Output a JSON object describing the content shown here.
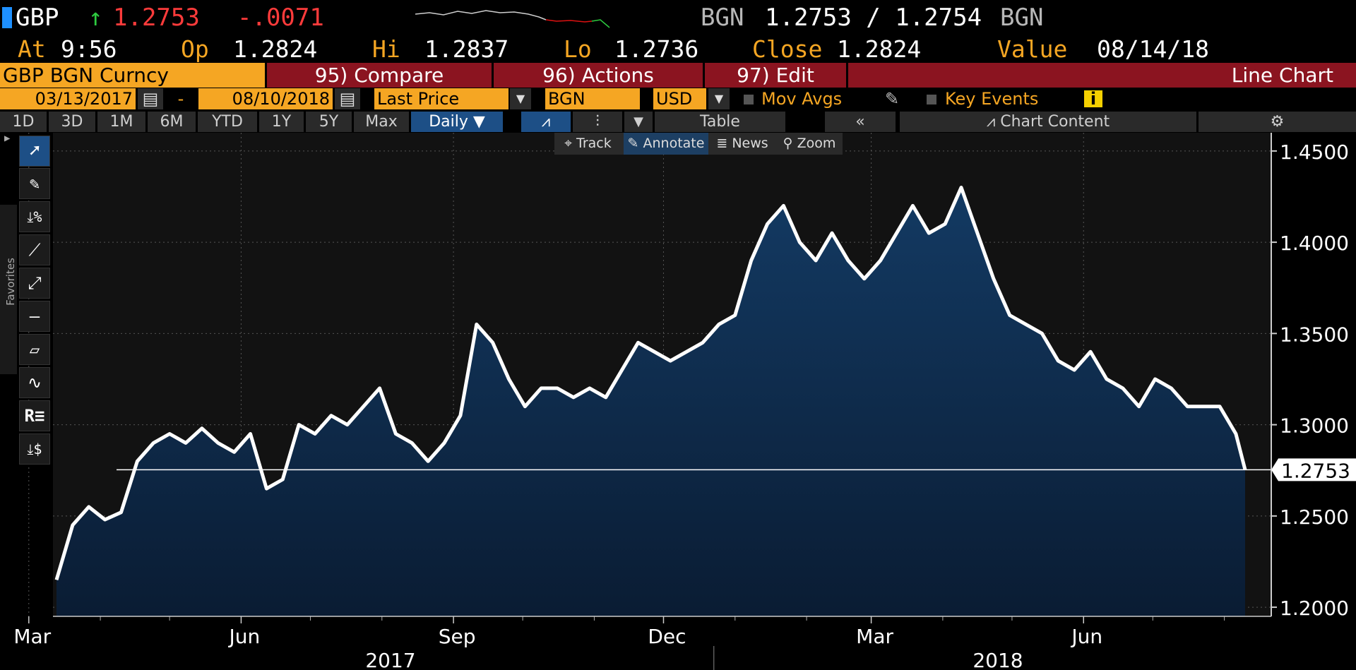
{
  "header": {
    "ticker": "GBP",
    "arrow": "↑",
    "last": "1.2753",
    "change": "-.0071",
    "source_left": "BGN",
    "bid_ask": "1.2753 / 1.2754",
    "source_right": "BGN"
  },
  "quote": {
    "at_label": "At",
    "at_value": "9:56",
    "op_label": "Op",
    "op_value": "1.2824",
    "hi_label": "Hi",
    "hi_value": "1.2837",
    "lo_label": "Lo",
    "lo_value": "1.2736",
    "close_label": "Close",
    "close_value": "1.2824",
    "value_label": "Value",
    "value_date": "08/14/18"
  },
  "menubar": {
    "security": "GBP BGN Curncy",
    "compare": "95) Compare",
    "actions": "96) Actions",
    "edit": "97) Edit",
    "chart_type": "Line Chart"
  },
  "settings": {
    "start_date": "03/13/2017",
    "dash": "-",
    "end_date": "08/10/2018",
    "field": "Last Price",
    "source": "BGN",
    "currency": "USD",
    "mov_avgs": "Mov Avgs",
    "key_events": "Key Events"
  },
  "periods": [
    "1D",
    "3D",
    "1M",
    "6M",
    "YTD",
    "1Y",
    "5Y",
    "Max"
  ],
  "frequency": "Daily ▼",
  "view_buttons": {
    "table": "Table",
    "collapse": "«",
    "chart_content": "Chart Content"
  },
  "chart_tools": {
    "track": "Track",
    "annotate": "Annotate",
    "news": "News",
    "zoom": "Zoom"
  },
  "sidebar": {
    "favorites": "Favorites"
  },
  "colors": {
    "line": "#ffffff",
    "area": "#0f2a4a",
    "amber": "#f5a623",
    "red": "#ff3b3b",
    "menubar": "#8b1420",
    "blue_btn": "#1d4f86"
  },
  "chart_data": {
    "type": "area",
    "x_ticks": [
      "Mar",
      "Jun",
      "Sep",
      "Dec",
      "Mar",
      "Jun"
    ],
    "x_years": [
      "2017",
      "2018"
    ],
    "y_ticks": [
      "1.4500",
      "1.4000",
      "1.3500",
      "1.3000",
      "1.2500",
      "1.2000"
    ],
    "ylim": [
      1.195,
      1.46
    ],
    "last_value": "1.2753",
    "dates": [
      "2017-03-13",
      "2017-03-20",
      "2017-03-27",
      "2017-04-03",
      "2017-04-10",
      "2017-04-17",
      "2017-04-24",
      "2017-05-01",
      "2017-05-08",
      "2017-05-15",
      "2017-05-22",
      "2017-05-29",
      "2017-06-05",
      "2017-06-12",
      "2017-06-19",
      "2017-06-26",
      "2017-07-03",
      "2017-07-10",
      "2017-07-17",
      "2017-07-24",
      "2017-07-31",
      "2017-08-07",
      "2017-08-14",
      "2017-08-21",
      "2017-08-28",
      "2017-09-04",
      "2017-09-11",
      "2017-09-18",
      "2017-09-25",
      "2017-10-02",
      "2017-10-09",
      "2017-10-16",
      "2017-10-23",
      "2017-10-30",
      "2017-11-06",
      "2017-11-13",
      "2017-11-20",
      "2017-11-27",
      "2017-12-04",
      "2017-12-11",
      "2017-12-18",
      "2017-12-25",
      "2018-01-01",
      "2018-01-08",
      "2018-01-15",
      "2018-01-22",
      "2018-01-29",
      "2018-02-05",
      "2018-02-12",
      "2018-02-19",
      "2018-02-26",
      "2018-03-05",
      "2018-03-12",
      "2018-03-19",
      "2018-03-26",
      "2018-04-02",
      "2018-04-09",
      "2018-04-16",
      "2018-04-23",
      "2018-04-30",
      "2018-05-07",
      "2018-05-14",
      "2018-05-21",
      "2018-05-28",
      "2018-06-04",
      "2018-06-11",
      "2018-06-18",
      "2018-06-25",
      "2018-07-02",
      "2018-07-09",
      "2018-07-16",
      "2018-07-23",
      "2018-07-30",
      "2018-08-06",
      "2018-08-10"
    ],
    "values": [
      1.215,
      1.245,
      1.255,
      1.248,
      1.252,
      1.28,
      1.29,
      1.295,
      1.29,
      1.298,
      1.29,
      1.285,
      1.295,
      1.265,
      1.27,
      1.3,
      1.295,
      1.305,
      1.3,
      1.31,
      1.32,
      1.295,
      1.29,
      1.28,
      1.29,
      1.305,
      1.355,
      1.345,
      1.325,
      1.31,
      1.32,
      1.32,
      1.315,
      1.32,
      1.315,
      1.33,
      1.345,
      1.34,
      1.335,
      1.34,
      1.345,
      1.355,
      1.36,
      1.39,
      1.41,
      1.42,
      1.4,
      1.39,
      1.405,
      1.39,
      1.38,
      1.39,
      1.405,
      1.42,
      1.405,
      1.41,
      1.43,
      1.405,
      1.38,
      1.36,
      1.355,
      1.35,
      1.335,
      1.33,
      1.34,
      1.325,
      1.32,
      1.31,
      1.325,
      1.32,
      1.31,
      1.31,
      1.31,
      1.295,
      1.2753
    ]
  }
}
